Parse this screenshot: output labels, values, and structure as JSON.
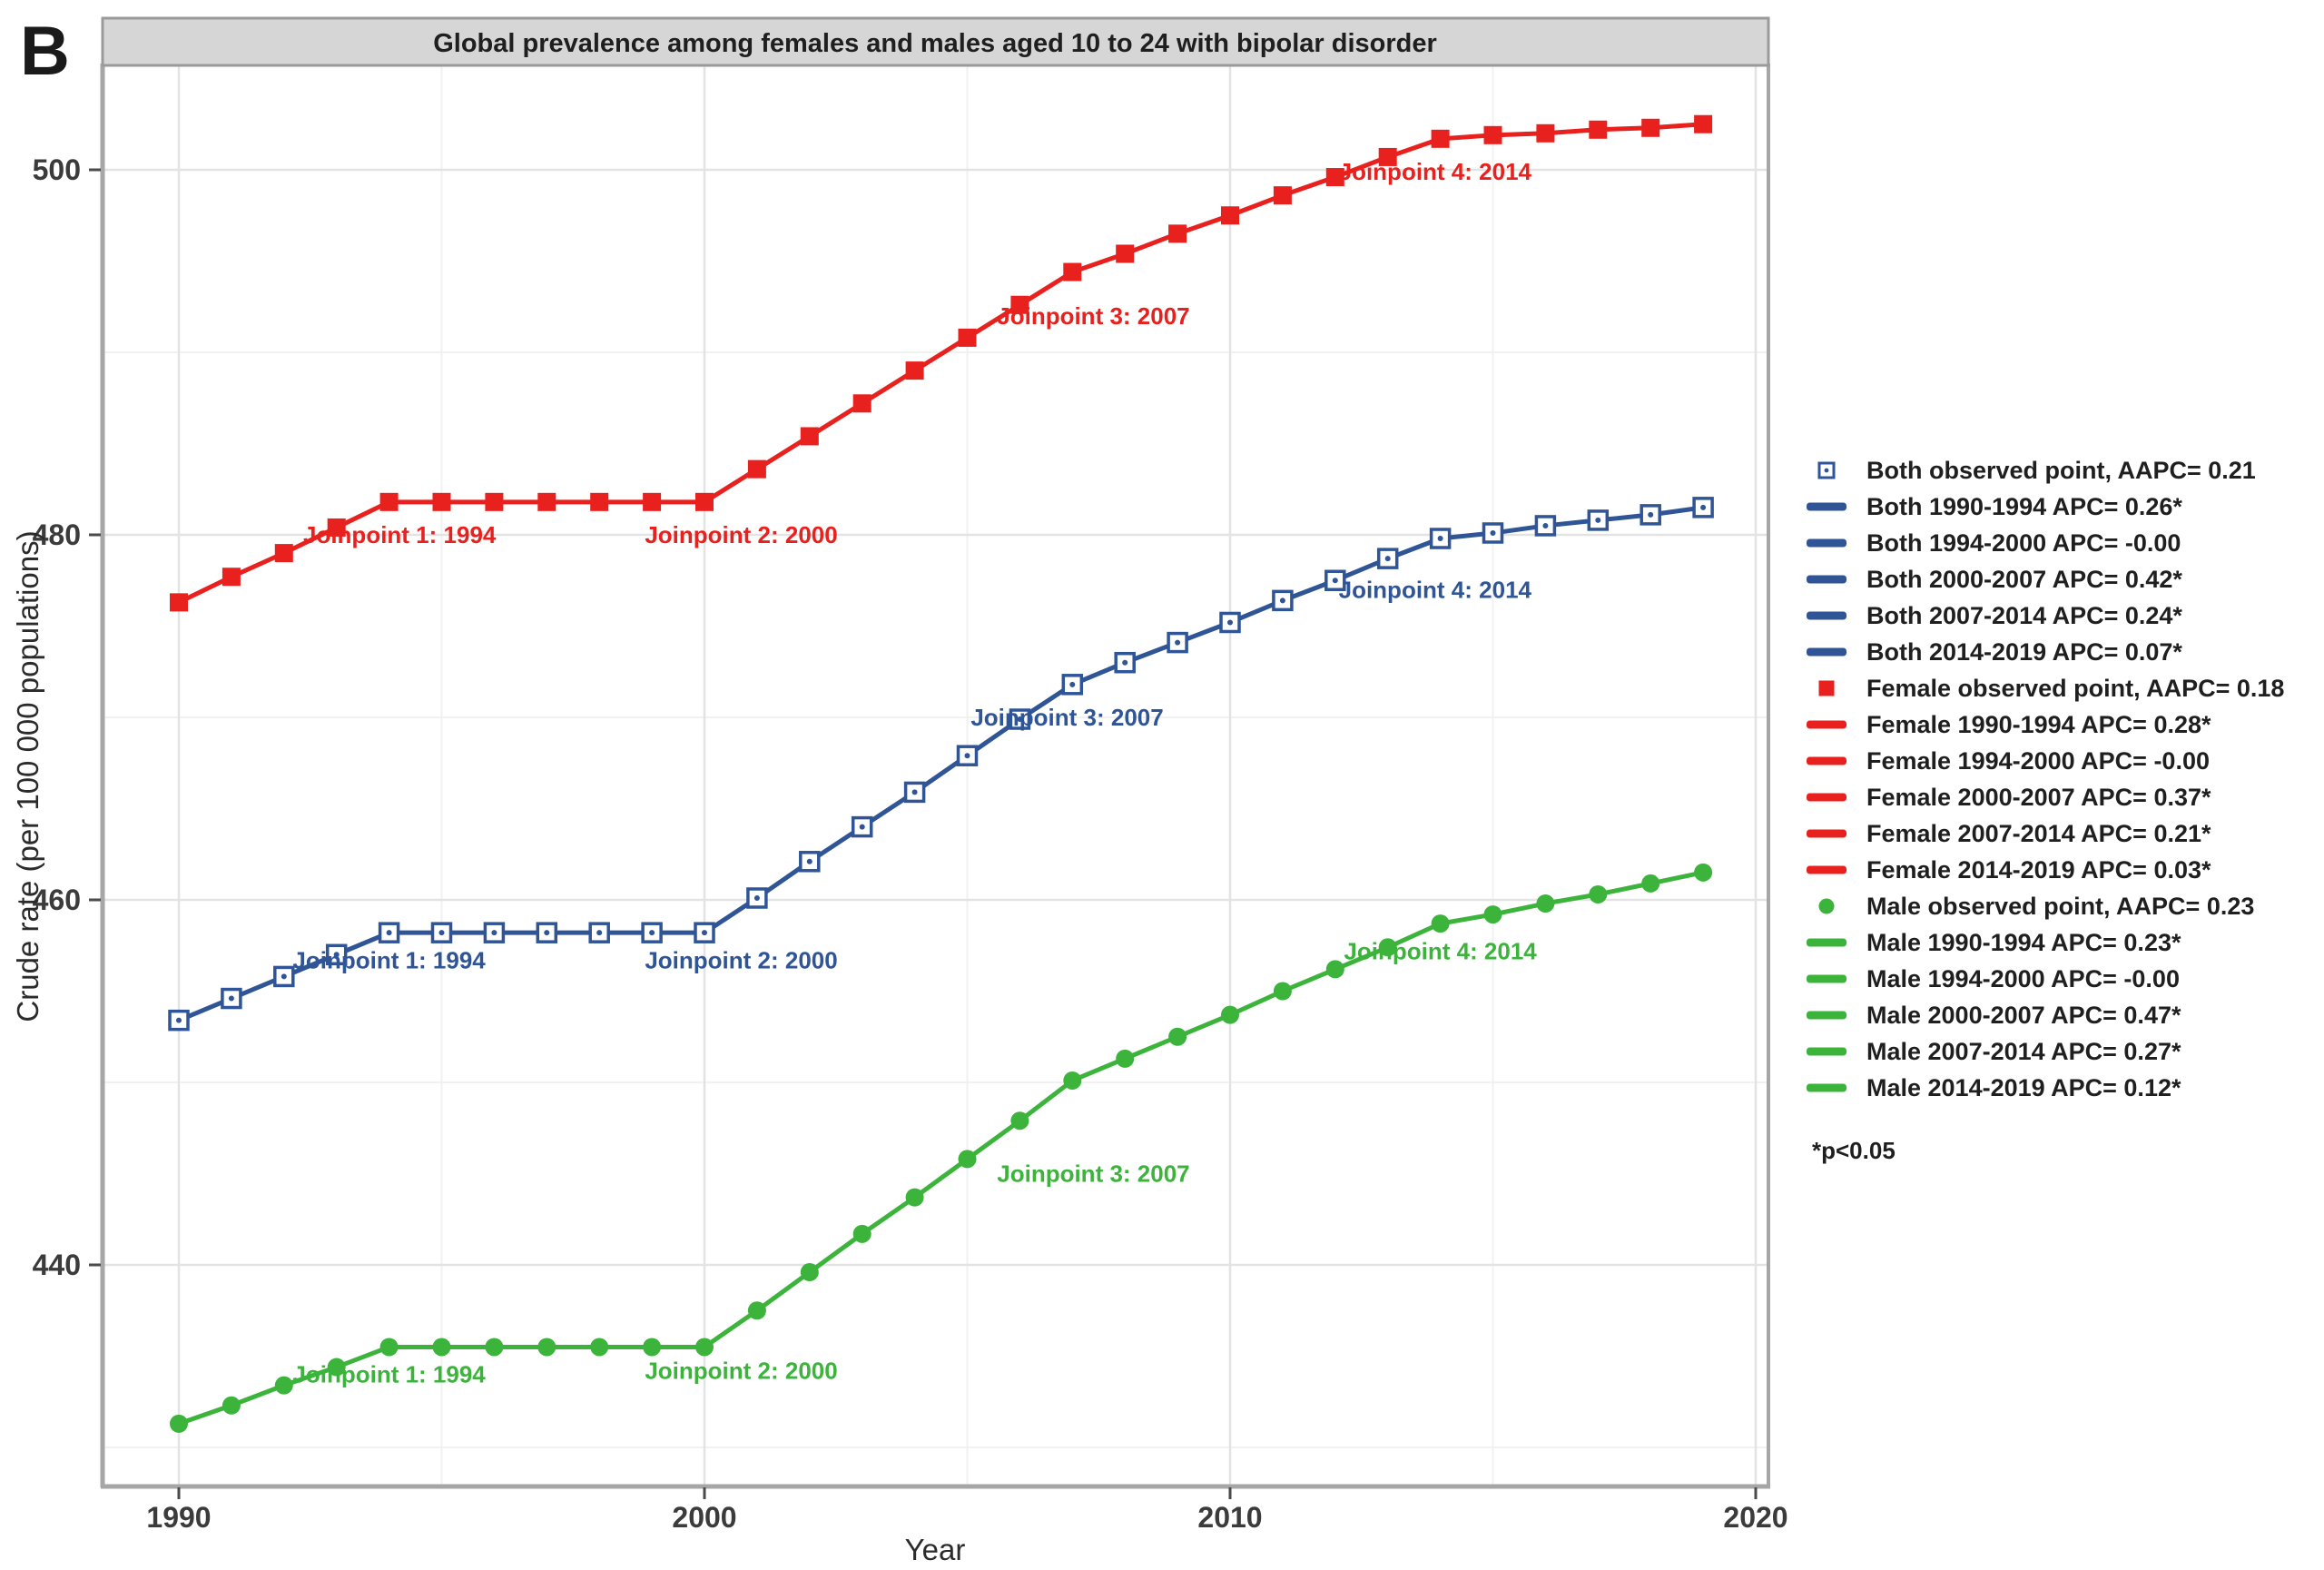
{
  "panel_label": "B",
  "title": "Global prevalence among females and males aged 10 to 24 with bipolar disorder",
  "axes": {
    "x_label": "Year",
    "y_label": "Crude rate (per 100 000 populations)",
    "x_major_ticks": [
      1990,
      2000,
      2010,
      2020
    ],
    "x_minor_ticks": [
      1995,
      2005,
      2015
    ],
    "y_major_ticks": [
      440,
      460,
      480,
      500
    ],
    "y_minor_ticks": [
      430,
      450,
      470,
      490
    ]
  },
  "colors": {
    "both": "#2f5597",
    "female": "#e8201e",
    "male": "#3cb43c",
    "strip_bg": "#d6d6d6",
    "strip_border": "#9a9a9a",
    "axis_line": "#a6a6a6",
    "grid_major": "#e3e3e3",
    "grid_minor": "#f1f1f1",
    "tick": "#4a4a4a"
  },
  "chart_data": {
    "type": "line",
    "title": "Global prevalence among females and males aged 10 to 24 with bipolar disorder",
    "xlabel": "Year",
    "ylabel": "Crude rate (per 100 000 populations)",
    "xlim": [
      1988.5,
      2020.2
    ],
    "ylim": [
      427.9,
      505.7
    ],
    "grid": true,
    "legend_position": "right",
    "x": [
      1990,
      1991,
      1992,
      1993,
      1994,
      1995,
      1996,
      1997,
      1998,
      1999,
      2000,
      2001,
      2002,
      2003,
      2004,
      2005,
      2006,
      2007,
      2008,
      2009,
      2010,
      2011,
      2012,
      2013,
      2014,
      2015,
      2016,
      2017,
      2018,
      2019
    ],
    "series": [
      {
        "name": "Both",
        "color_key": "both",
        "marker": "square-open",
        "values": [
          453.4,
          454.6,
          455.8,
          457.0,
          458.2,
          458.2,
          458.2,
          458.2,
          458.2,
          458.2,
          458.2,
          460.1,
          462.1,
          464.0,
          465.9,
          467.9,
          469.9,
          471.8,
          473.0,
          474.1,
          475.2,
          476.4,
          477.5,
          478.7,
          479.8,
          480.1,
          480.5,
          480.8,
          481.1,
          481.5
        ]
      },
      {
        "name": "Female",
        "color_key": "female",
        "marker": "square",
        "values": [
          476.3,
          477.7,
          479.0,
          480.4,
          481.8,
          481.8,
          481.8,
          481.8,
          481.8,
          481.8,
          481.8,
          483.6,
          485.4,
          487.2,
          489.0,
          490.8,
          492.6,
          494.4,
          495.4,
          496.5,
          497.5,
          498.6,
          499.6,
          500.7,
          501.7,
          501.9,
          502.0,
          502.2,
          502.3,
          502.5
        ]
      },
      {
        "name": "Male",
        "color_key": "male",
        "marker": "circle",
        "values": [
          431.3,
          432.3,
          433.4,
          434.4,
          435.5,
          435.5,
          435.5,
          435.5,
          435.5,
          435.5,
          435.5,
          437.5,
          439.6,
          441.7,
          443.7,
          445.8,
          447.9,
          450.1,
          451.3,
          452.5,
          453.7,
          455.0,
          456.2,
          457.4,
          458.7,
          459.2,
          459.8,
          460.3,
          460.9,
          461.5
        ]
      }
    ],
    "annotations": [
      {
        "series": "Female",
        "text": "Joinpoint 1: 1994",
        "x": 1994.2,
        "y": 480.0
      },
      {
        "series": "Female",
        "text": "Joinpoint 2: 2000",
        "x": 2000.7,
        "y": 480.0
      },
      {
        "series": "Female",
        "text": "Joinpoint 3: 2007",
        "x": 2007.4,
        "y": 492.0
      },
      {
        "series": "Female",
        "text": "Joinpoint 4: 2014",
        "x": 2013.9,
        "y": 499.9
      },
      {
        "series": "Both",
        "text": "Joinpoint 1: 1994",
        "x": 1994.0,
        "y": 456.7
      },
      {
        "series": "Both",
        "text": "Joinpoint 2: 2000",
        "x": 2000.7,
        "y": 456.7
      },
      {
        "series": "Both",
        "text": "Joinpoint 3: 2007",
        "x": 2006.9,
        "y": 470.0
      },
      {
        "series": "Both",
        "text": "Joinpoint 4: 2014",
        "x": 2013.9,
        "y": 477.0
      },
      {
        "series": "Male",
        "text": "Joinpoint 1: 1994",
        "x": 1994.0,
        "y": 434.0
      },
      {
        "series": "Male",
        "text": "Joinpoint 2: 2000",
        "x": 2000.7,
        "y": 434.2
      },
      {
        "series": "Male",
        "text": "Joinpoint 3: 2007",
        "x": 2007.4,
        "y": 445.0
      },
      {
        "series": "Male",
        "text": "Joinpoint 4: 2014",
        "x": 2014.0,
        "y": 457.2
      }
    ]
  },
  "legend": {
    "items": [
      {
        "marker": "square-open",
        "color_key": "both",
        "label": "Both  observed point, AAPC= 0.21"
      },
      {
        "marker": "line",
        "color_key": "both",
        "label": "Both 1990-1994 APC= 0.26*"
      },
      {
        "marker": "line",
        "color_key": "both",
        "label": "Both 1994-2000 APC= -0.00"
      },
      {
        "marker": "line",
        "color_key": "both",
        "label": "Both 2000-2007 APC= 0.42*"
      },
      {
        "marker": "line",
        "color_key": "both",
        "label": "Both 2007-2014 APC= 0.24*"
      },
      {
        "marker": "line",
        "color_key": "both",
        "label": "Both 2014-2019 APC= 0.07*"
      },
      {
        "marker": "square",
        "color_key": "female",
        "label": "Female  observed point, AAPC= 0.18"
      },
      {
        "marker": "line",
        "color_key": "female",
        "label": "Female 1990-1994 APC= 0.28*"
      },
      {
        "marker": "line",
        "color_key": "female",
        "label": "Female 1994-2000 APC= -0.00"
      },
      {
        "marker": "line",
        "color_key": "female",
        "label": "Female 2000-2007 APC= 0.37*"
      },
      {
        "marker": "line",
        "color_key": "female",
        "label": "Female 2007-2014 APC= 0.21*"
      },
      {
        "marker": "line",
        "color_key": "female",
        "label": "Female 2014-2019 APC= 0.03*"
      },
      {
        "marker": "circle",
        "color_key": "male",
        "label": "Male  observed point, AAPC= 0.23"
      },
      {
        "marker": "line",
        "color_key": "male",
        "label": "Male 1990-1994 APC= 0.23*"
      },
      {
        "marker": "line",
        "color_key": "male",
        "label": "Male 1994-2000 APC= -0.00"
      },
      {
        "marker": "line",
        "color_key": "male",
        "label": "Male 2000-2007 APC= 0.47*"
      },
      {
        "marker": "line",
        "color_key": "male",
        "label": "Male 2007-2014 APC= 0.27*"
      },
      {
        "marker": "line",
        "color_key": "male",
        "label": "Male 2014-2019 APC= 0.12*"
      }
    ],
    "footnote": "*p<0.05"
  }
}
